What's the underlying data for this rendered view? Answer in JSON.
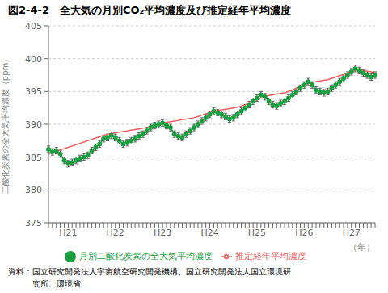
{
  "chart_data": {
    "type": "line",
    "title": "図2-4-2　全大気の月別CO₂平均濃度及び推定経年平均濃度",
    "y_label": "二酸化炭素の全大気平均濃度（ppm）",
    "x_label": "（年）",
    "annotations": [
      "資料：国立研究開発法人宇宙航空研究開発機構、国立研究開発法人国立環境研",
      "　　　究所、環境省"
    ],
    "categories": [
      null,
      null,
      null,
      null,
      null,
      "H21",
      null,
      null,
      null,
      null,
      null,
      null,
      null,
      null,
      null,
      null,
      null,
      "H22",
      null,
      null,
      null,
      null,
      null,
      null,
      null,
      null,
      null,
      null,
      null,
      "H23",
      null,
      null,
      null,
      null,
      null,
      null,
      null,
      null,
      null,
      null,
      null,
      "H24",
      null,
      null,
      null,
      null,
      null,
      null,
      null,
      null,
      null,
      null,
      null,
      "H25",
      null,
      null,
      null,
      null,
      null,
      null,
      null,
      null,
      null,
      null,
      null,
      "H26",
      null,
      null,
      null,
      null,
      null,
      null,
      null,
      null,
      null,
      null,
      null,
      "H27",
      null,
      null,
      null,
      null,
      null,
      null
    ],
    "series": [
      {
        "name": "月別二酸化炭素の全大気平均濃度",
        "color": "#1a9e3f",
        "marker": "o",
        "error": 0.5,
        "values": [
          386.2,
          385.8,
          386.0,
          385.5,
          384.5,
          384.0,
          384.2,
          384.5,
          384.8,
          385.0,
          385.3,
          386.0,
          386.5,
          387.0,
          387.8,
          388.0,
          388.3,
          388.0,
          387.5,
          387.0,
          387.2,
          387.5,
          387.8,
          388.2,
          388.5,
          389.0,
          389.5,
          389.8,
          390.0,
          390.2,
          389.8,
          389.5,
          388.5,
          388.2,
          388.0,
          388.5,
          389.0,
          389.5,
          390.0,
          390.5,
          391.0,
          391.5,
          392.0,
          391.8,
          391.5,
          391.2,
          390.8,
          391.0,
          391.5,
          392.0,
          392.5,
          393.0,
          393.5,
          394.0,
          394.5,
          394.2,
          393.5,
          393.0,
          392.8,
          393.2,
          393.5,
          394.0,
          394.5,
          395.0,
          395.5,
          396.0,
          396.5,
          396.0,
          395.2,
          395.0,
          394.8,
          395.0,
          395.5,
          396.0,
          396.5,
          397.0,
          397.5,
          398.0,
          398.5,
          398.2,
          397.8,
          397.5,
          397.2,
          397.5
        ]
      },
      {
        "name": "推定経年平均濃度",
        "color": "#e86060",
        "values": [
          385.5,
          385.7,
          385.9,
          386.1,
          386.3,
          386.5,
          386.7,
          386.9,
          387.1,
          387.3,
          387.5,
          387.7,
          387.9,
          388.1,
          388.3,
          388.5,
          388.6,
          388.7,
          388.8,
          388.9,
          389.0,
          389.1,
          389.2,
          389.3,
          389.4,
          389.5,
          389.7,
          389.9,
          390.1,
          390.2,
          390.3,
          390.4,
          390.5,
          390.6,
          390.7,
          390.8,
          390.9,
          391.0,
          391.2,
          391.4,
          391.6,
          391.8,
          392.0,
          392.1,
          392.2,
          392.3,
          392.4,
          392.5,
          392.6,
          392.8,
          393.0,
          393.2,
          393.5,
          393.8,
          394.0,
          394.2,
          394.4,
          394.5,
          394.6,
          394.7,
          394.8,
          395.0,
          395.2,
          395.5,
          395.8,
          396.0,
          396.2,
          396.4,
          396.5,
          396.6,
          396.7,
          396.8,
          397.0,
          397.2,
          397.4,
          397.6,
          397.8,
          398.0,
          398.2,
          398.3,
          398.2,
          398.1,
          398.0,
          397.9
        ]
      }
    ],
    "ylim": [
      375,
      405
    ],
    "yticks": [
      375,
      380,
      385,
      390,
      395,
      400,
      405
    ],
    "grid": true
  }
}
